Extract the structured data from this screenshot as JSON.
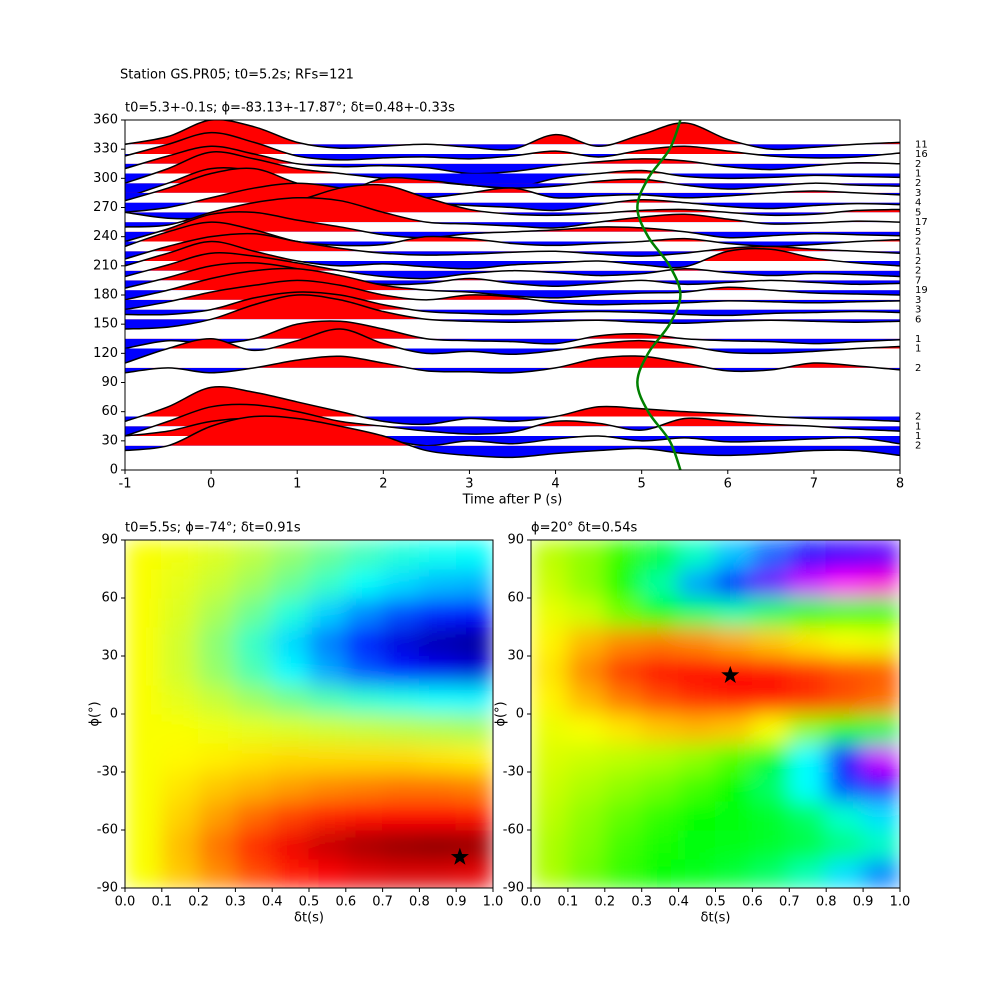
{
  "chart_data": [
    {
      "type": "traces",
      "title": "Station GS.PR05; t0=5.2s; RFs=121",
      "subtitle": "t0=5.3+-0.1s; ϕ=-83.13+-17.87°; δt=0.48+-0.33s",
      "xlabel": "Time after P (s)",
      "xlim": [
        -1,
        8
      ],
      "ylim": [
        0,
        360
      ],
      "xticks": [
        -1,
        0,
        1,
        2,
        3,
        4,
        5,
        6,
        7,
        8
      ],
      "yticks": [
        0,
        30,
        60,
        90,
        120,
        150,
        180,
        210,
        240,
        270,
        300,
        330,
        360
      ],
      "pos_color": "#ff0000",
      "neg_color": "#0000ff",
      "line_color": "#000000",
      "x": [
        -1,
        -0.5,
        0,
        0.5,
        1,
        1.5,
        2,
        2.5,
        3,
        3.5,
        4,
        4.5,
        5,
        5.5,
        6,
        6.5,
        7,
        7.5,
        8
      ],
      "traces": [
        {
          "baz": 335,
          "count": 11,
          "values": [
            335,
            343,
            360,
            353,
            337,
            331,
            333,
            335,
            332,
            330,
            345,
            333,
            345,
            357,
            340,
            330,
            332,
            335,
            337
          ]
        },
        {
          "baz": 325,
          "count": 16,
          "values": [
            323,
            335,
            347,
            337,
            323,
            319,
            321,
            322,
            320,
            323,
            328,
            322,
            329,
            333,
            328,
            323,
            321,
            322,
            326
          ]
        },
        {
          "baz": 315,
          "count": 2,
          "values": [
            310,
            323,
            333,
            325,
            315,
            312,
            313,
            311,
            305,
            307,
            313,
            317,
            320,
            318,
            312,
            309,
            313,
            316,
            315
          ]
        },
        {
          "baz": 305,
          "count": 1,
          "values": [
            295,
            310,
            327,
            320,
            310,
            305,
            300,
            297,
            293,
            290,
            300,
            305,
            308,
            302,
            300,
            301,
            303,
            302,
            301
          ]
        },
        {
          "baz": 295,
          "count": 2,
          "values": [
            280,
            295,
            310,
            307,
            290,
            285,
            300,
            298,
            293,
            290,
            292,
            297,
            299,
            293,
            289,
            292,
            295,
            293,
            292
          ]
        },
        {
          "baz": 285,
          "count": 3,
          "values": [
            277,
            290,
            305,
            310,
            295,
            285,
            282,
            280,
            285,
            290,
            280,
            282,
            283,
            280,
            282,
            285,
            287,
            285,
            283
          ]
        },
        {
          "baz": 275,
          "count": 4,
          "values": [
            265,
            270,
            280,
            290,
            295,
            290,
            280,
            275,
            272,
            270,
            267,
            273,
            278,
            275,
            271,
            269,
            272,
            274,
            273
          ]
        },
        {
          "baz": 265,
          "count": 5,
          "values": [
            265,
            259,
            260,
            270,
            277,
            290,
            293,
            280,
            268,
            263,
            262,
            264,
            267,
            268,
            265,
            262,
            263,
            267,
            268
          ]
        },
        {
          "baz": 255,
          "count": 17,
          "values": [
            250,
            252,
            265,
            275,
            280,
            277,
            265,
            255,
            253,
            251,
            249,
            255,
            260,
            263,
            258,
            253,
            254,
            256,
            255
          ]
        },
        {
          "baz": 245,
          "count": 5,
          "values": [
            235,
            248,
            263,
            265,
            257,
            250,
            242,
            239,
            243,
            245,
            247,
            250,
            249,
            245,
            239,
            241,
            243,
            242,
            241
          ]
        },
        {
          "baz": 235,
          "count": 2,
          "values": [
            230,
            245,
            255,
            247,
            235,
            231,
            232,
            240,
            238,
            233,
            231,
            233,
            235,
            238,
            233,
            230,
            232,
            235,
            237
          ]
        },
        {
          "baz": 225,
          "count": 1,
          "values": [
            217,
            230,
            240,
            243,
            235,
            228,
            223,
            221,
            222,
            224,
            225,
            222,
            220,
            223,
            228,
            230,
            227,
            225,
            223
          ]
        },
        {
          "baz": 215,
          "count": 2,
          "values": [
            210,
            223,
            235,
            225,
            215,
            210,
            212,
            209,
            207,
            211,
            213,
            215,
            211,
            209,
            225,
            227,
            218,
            213,
            210
          ]
        },
        {
          "baz": 205,
          "count": 2,
          "values": [
            199,
            211,
            223,
            220,
            213,
            205,
            199,
            197,
            202,
            205,
            203,
            200,
            202,
            207,
            203,
            200,
            202,
            201,
            199
          ]
        },
        {
          "baz": 195,
          "count": 7,
          "values": [
            187,
            198,
            210,
            213,
            207,
            197,
            191,
            192,
            197,
            192,
            189,
            192,
            195,
            191,
            193,
            195,
            193,
            191,
            192
          ]
        },
        {
          "baz": 185,
          "count": 19,
          "values": [
            175,
            185,
            197,
            205,
            207,
            200,
            190,
            185,
            183,
            179,
            177,
            180,
            182,
            183,
            188,
            185,
            182,
            181,
            180
          ]
        },
        {
          "baz": 175,
          "count": 3,
          "values": [
            165,
            173,
            183,
            190,
            195,
            190,
            180,
            175,
            180,
            178,
            172,
            170,
            171,
            172,
            174,
            173,
            172,
            173,
            174
          ]
        },
        {
          "baz": 165,
          "count": 3,
          "values": [
            160,
            160,
            165,
            177,
            183,
            180,
            170,
            163,
            161,
            160,
            162,
            163,
            162,
            160,
            159,
            161,
            162,
            163,
            162
          ]
        },
        {
          "baz": 155,
          "count": 6,
          "values": [
            145,
            147,
            155,
            170,
            180,
            175,
            163,
            155,
            153,
            152,
            153,
            154,
            152,
            151,
            153,
            154,
            153,
            152,
            153
          ]
        },
        {
          "baz": 135,
          "count": 1,
          "values": [
            125,
            133,
            130,
            135,
            150,
            153,
            145,
            135,
            133,
            132,
            130,
            138,
            140,
            135,
            133,
            132,
            130,
            132,
            134
          ]
        },
        {
          "baz": 125,
          "count": 1,
          "values": [
            110,
            125,
            135,
            123,
            133,
            145,
            130,
            120,
            122,
            119,
            123,
            130,
            133,
            128,
            121,
            120,
            122,
            125,
            127
          ]
        },
        {
          "baz": 105,
          "count": 2,
          "values": [
            100,
            105,
            100,
            105,
            113,
            117,
            110,
            102,
            101,
            100,
            105,
            115,
            117,
            110,
            102,
            103,
            110,
            107,
            103
          ]
        },
        {
          "baz": 55,
          "count": 2,
          "values": [
            50,
            65,
            85,
            80,
            70,
            60,
            50,
            47,
            53,
            50,
            55,
            65,
            63,
            60,
            58,
            55,
            53,
            52,
            50
          ]
        },
        {
          "baz": 45,
          "count": 1,
          "values": [
            35,
            50,
            65,
            67,
            60,
            50,
            45,
            40,
            37,
            39,
            50,
            48,
            41,
            53,
            50,
            47,
            45,
            42,
            40
          ]
        },
        {
          "baz": 35,
          "count": 1,
          "values": [
            35,
            40,
            50,
            53,
            47,
            40,
            32,
            25,
            30,
            27,
            32,
            35,
            30,
            33,
            29,
            30,
            32,
            33,
            27
          ]
        },
        {
          "baz": 25,
          "count": 2,
          "values": [
            20,
            25,
            45,
            55,
            53,
            45,
            35,
            20,
            15,
            13,
            17,
            20,
            22,
            17,
            15,
            17,
            20,
            20,
            15
          ]
        }
      ],
      "t0_curve": {
        "color": "#008000",
        "x": [
          5.45,
          5.325,
          5.075,
          4.95,
          5.075,
          5.325,
          5.45,
          5.325,
          5.075,
          4.95,
          5.075,
          5.325,
          5.45
        ],
        "y": [
          0,
          30,
          60,
          90,
          120,
          150,
          180,
          210,
          240,
          270,
          300,
          330,
          360
        ]
      }
    },
    {
      "type": "heatmap",
      "cmap": "jet",
      "subtitle": "t0=5.5s; ϕ=-74°; δt=0.91s",
      "xlabel": "δt(s)",
      "ylabel": "ϕ(°)",
      "xlim": [
        0,
        1
      ],
      "ylim": [
        -90,
        90
      ],
      "xticks": [
        {
          "value": 0,
          "label": "0.0"
        },
        0.1,
        0.2,
        0.3,
        0.4,
        0.5,
        0.6,
        0.7,
        0.8,
        0.9,
        {
          "value": 1,
          "label": "1.0"
        }
      ],
      "yticks": [
        -90,
        -60,
        -30,
        0,
        30,
        60,
        90
      ],
      "xbins": [
        0,
        0.1,
        0.2,
        0.3,
        0.4,
        0.5,
        0.6,
        0.7,
        0.8,
        0.9,
        1
      ],
      "ybins": [
        -90,
        -75,
        -60,
        -45,
        -30,
        -15,
        0,
        15,
        30,
        45,
        60,
        75,
        90
      ],
      "z": [
        [
          0.62,
          0.68,
          0.74,
          0.8,
          0.85,
          0.88,
          0.9,
          0.91,
          0.91,
          0.9
        ],
        [
          0.62,
          0.69,
          0.76,
          0.83,
          0.89,
          0.93,
          0.96,
          0.98,
          0.99,
          0.98
        ],
        [
          0.62,
          0.67,
          0.72,
          0.77,
          0.81,
          0.84,
          0.86,
          0.87,
          0.87,
          0.86
        ],
        [
          0.62,
          0.65,
          0.68,
          0.7,
          0.72,
          0.74,
          0.75,
          0.76,
          0.76,
          0.75
        ],
        [
          0.62,
          0.63,
          0.64,
          0.65,
          0.66,
          0.66,
          0.66,
          0.66,
          0.65,
          0.64
        ],
        [
          0.62,
          0.62,
          0.61,
          0.6,
          0.59,
          0.58,
          0.57,
          0.56,
          0.55,
          0.54
        ],
        [
          0.62,
          0.6,
          0.57,
          0.53,
          0.49,
          0.45,
          0.42,
          0.4,
          0.38,
          0.37
        ],
        [
          0.62,
          0.58,
          0.52,
          0.45,
          0.37,
          0.29,
          0.21,
          0.15,
          0.11,
          0.09
        ],
        [
          0.62,
          0.58,
          0.51,
          0.43,
          0.34,
          0.25,
          0.16,
          0.09,
          0.05,
          0.03
        ],
        [
          0.62,
          0.59,
          0.54,
          0.48,
          0.41,
          0.33,
          0.26,
          0.2,
          0.16,
          0.14
        ],
        [
          0.62,
          0.6,
          0.57,
          0.53,
          0.48,
          0.43,
          0.38,
          0.34,
          0.31,
          0.3
        ],
        [
          0.62,
          0.61,
          0.59,
          0.56,
          0.52,
          0.48,
          0.44,
          0.41,
          0.39,
          0.38
        ]
      ],
      "marker": {
        "x": 0.91,
        "y": -74,
        "color": "#000000"
      }
    },
    {
      "type": "heatmap",
      "cmap": "hsv",
      "subtitle": "ϕ=20° δt=0.54s",
      "xlabel": "δt(s)",
      "ylabel": "ϕ(°)",
      "xlim": [
        0,
        1
      ],
      "ylim": [
        -90,
        90
      ],
      "xticks": [
        {
          "value": 0,
          "label": "0.0"
        },
        0.1,
        0.2,
        0.3,
        0.4,
        0.5,
        0.6,
        0.7,
        0.8,
        0.9,
        {
          "value": 1,
          "label": "1.0"
        }
      ],
      "yticks": [
        -90,
        -60,
        -30,
        0,
        30,
        60,
        90
      ],
      "xbins": [
        0,
        0.1,
        0.2,
        0.3,
        0.4,
        0.5,
        0.6,
        0.7,
        0.8,
        0.9,
        1
      ],
      "ybins": [
        -90,
        -75,
        -60,
        -45,
        -30,
        -15,
        0,
        15,
        30,
        45,
        60,
        75,
        90
      ],
      "z": [
        [
          0.22,
          0.26,
          0.3,
          0.33,
          0.35,
          0.37,
          0.4,
          0.45,
          0.52,
          0.58
        ],
        [
          0.22,
          0.25,
          0.29,
          0.32,
          0.34,
          0.35,
          0.36,
          0.38,
          0.42,
          0.46
        ],
        [
          0.21,
          0.24,
          0.27,
          0.3,
          0.33,
          0.34,
          0.36,
          0.4,
          0.47,
          0.52
        ],
        [
          0.2,
          0.22,
          0.24,
          0.26,
          0.29,
          0.33,
          0.4,
          0.5,
          0.62,
          0.7
        ],
        [
          0.19,
          0.2,
          0.21,
          0.22,
          0.24,
          0.28,
          0.36,
          0.5,
          0.68,
          0.8
        ],
        [
          0.18,
          0.17,
          0.15,
          0.13,
          0.12,
          0.13,
          0.17,
          0.24,
          0.32,
          0.38
        ],
        [
          0.16,
          0.12,
          0.08,
          0.05,
          0.03,
          0.02,
          0.02,
          0.03,
          0.05,
          0.07
        ],
        [
          0.15,
          0.09,
          0.04,
          0.01,
          0.0,
          0.0,
          0.01,
          0.03,
          0.05,
          0.06
        ],
        [
          0.16,
          0.12,
          0.09,
          0.08,
          0.09,
          0.11,
          0.13,
          0.15,
          0.17,
          0.18
        ],
        [
          0.18,
          0.2,
          0.26,
          0.34,
          0.4,
          0.44,
          0.4,
          0.34,
          0.3,
          0.3
        ],
        [
          0.2,
          0.24,
          0.32,
          0.44,
          0.56,
          0.66,
          0.74,
          0.8,
          0.84,
          0.86
        ],
        [
          0.21,
          0.24,
          0.3,
          0.38,
          0.46,
          0.54,
          0.6,
          0.66,
          0.7,
          0.72
        ]
      ],
      "marker": {
        "x": 0.54,
        "y": 20,
        "color": "#000000"
      }
    }
  ]
}
